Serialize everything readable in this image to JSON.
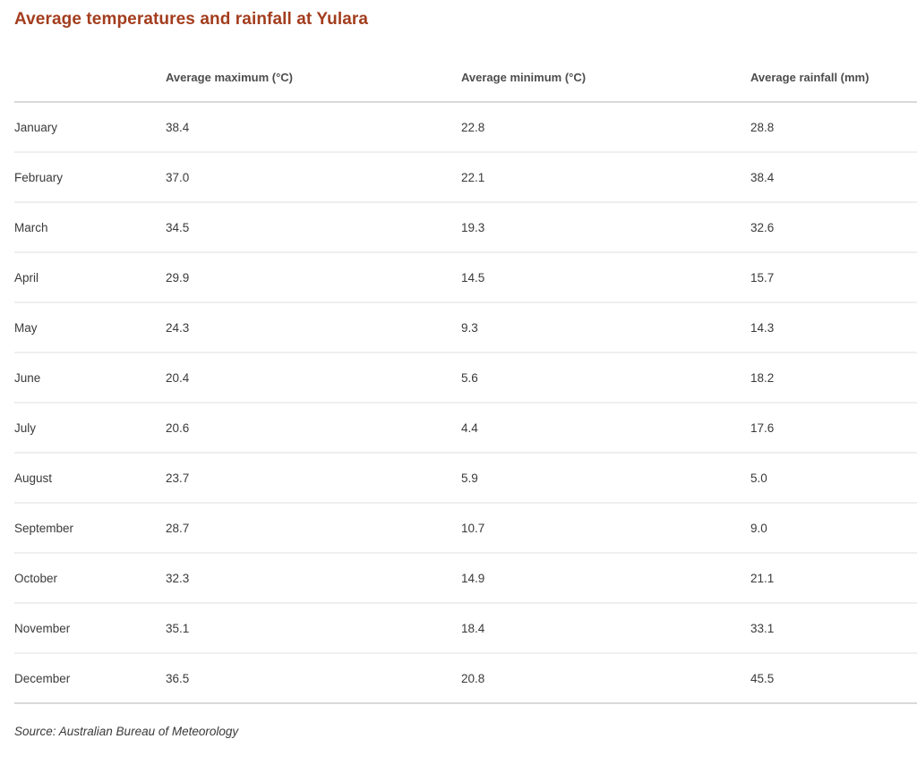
{
  "title": "Average temperatures and rainfall at Yulara",
  "source": "Source: Australian Bureau of Meteorology",
  "colors": {
    "title_text": "#a33d1e",
    "header_text": "#4d4d4d",
    "body_text": "#3a3a3a",
    "row_divider": "#efefef",
    "strong_divider": "#d9d9d9",
    "background": "#ffffff"
  },
  "table": {
    "columns": [
      "",
      "Average maximum (°C)",
      "Average minimum (°C)",
      "Average rainfall (mm)"
    ],
    "rows": [
      {
        "month": "January",
        "max": "38.4",
        "min": "22.8",
        "rain": "28.8"
      },
      {
        "month": "February",
        "max": "37.0",
        "min": "22.1",
        "rain": "38.4"
      },
      {
        "month": "March",
        "max": "34.5",
        "min": "19.3",
        "rain": "32.6"
      },
      {
        "month": "April",
        "max": "29.9",
        "min": "14.5",
        "rain": "15.7"
      },
      {
        "month": "May",
        "max": "24.3",
        "min": "9.3",
        "rain": "14.3"
      },
      {
        "month": "June",
        "max": "20.4",
        "min": "5.6",
        "rain": "18.2"
      },
      {
        "month": "July",
        "max": "20.6",
        "min": "4.4",
        "rain": "17.6"
      },
      {
        "month": "August",
        "max": "23.7",
        "min": "5.9",
        "rain": "5.0"
      },
      {
        "month": "September",
        "max": "28.7",
        "min": "10.7",
        "rain": "9.0"
      },
      {
        "month": "October",
        "max": "32.3",
        "min": "14.9",
        "rain": "21.1"
      },
      {
        "month": "November",
        "max": "35.1",
        "min": "18.4",
        "rain": "33.1"
      },
      {
        "month": "December",
        "max": "36.5",
        "min": "20.8",
        "rain": "45.5"
      }
    ]
  },
  "chart_data": {
    "type": "table",
    "title": "Average temperatures and rainfall at Yulara",
    "categories": [
      "January",
      "February",
      "March",
      "April",
      "May",
      "June",
      "July",
      "August",
      "September",
      "October",
      "November",
      "December"
    ],
    "series": [
      {
        "name": "Average maximum (°C)",
        "values": [
          38.4,
          37.0,
          34.5,
          29.9,
          24.3,
          20.4,
          20.6,
          23.7,
          28.7,
          32.3,
          35.1,
          36.5
        ]
      },
      {
        "name": "Average minimum (°C)",
        "values": [
          22.8,
          22.1,
          19.3,
          14.5,
          9.3,
          5.6,
          4.4,
          5.9,
          10.7,
          14.9,
          18.4,
          20.8
        ]
      },
      {
        "name": "Average rainfall (mm)",
        "values": [
          28.8,
          38.4,
          32.6,
          15.7,
          14.3,
          18.2,
          17.6,
          5.0,
          9.0,
          21.1,
          33.1,
          45.5
        ]
      }
    ],
    "annotations": [
      "Source: Australian Bureau of Meteorology"
    ],
    "legend_position": "none",
    "grid": "horizontal-row-dividers"
  }
}
